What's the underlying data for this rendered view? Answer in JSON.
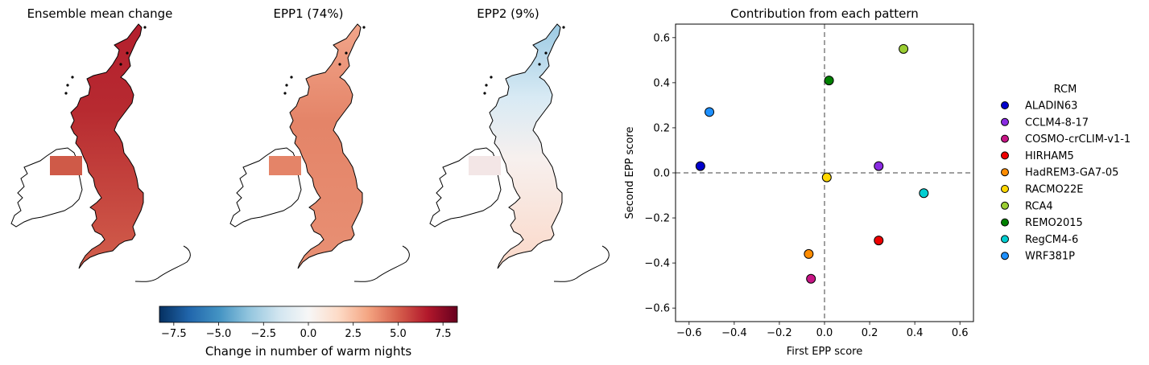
{
  "maps": [
    {
      "title": "Ensemble mean change",
      "style": "mean"
    },
    {
      "title": "EPP1 (74%)",
      "style": "epp1"
    },
    {
      "title": "EPP2 (9%)",
      "style": "epp2"
    }
  ],
  "colorbar": {
    "label": "Change in number of warm nights",
    "range": [
      -8.3,
      8.3
    ],
    "ticks": [
      "−7.5",
      "−5.0",
      "−2.5",
      "0.0",
      "2.5",
      "5.0",
      "7.5"
    ],
    "tick_values": [
      -7.5,
      -5.0,
      -2.5,
      0.0,
      2.5,
      5.0,
      7.5
    ],
    "colors": [
      "#053061",
      "#2166ac",
      "#4393c3",
      "#92c5de",
      "#d1e5f0",
      "#f7f7f7",
      "#fddbc7",
      "#f4a582",
      "#d6604d",
      "#b2182b",
      "#67001f"
    ]
  },
  "chart_data": {
    "type": "scatter",
    "title": "Contribution from each pattern",
    "xlabel": "First EPP score",
    "ylabel": "Second EPP score",
    "xlim": [
      -0.66,
      0.66
    ],
    "ylim": [
      -0.66,
      0.66
    ],
    "xticks": [
      -0.6,
      -0.4,
      -0.2,
      0.0,
      0.2,
      0.4,
      0.6
    ],
    "xtick_labels": [
      "−0.6",
      "−0.4",
      "−0.2",
      "0.0",
      "0.2",
      "0.4",
      "0.6"
    ],
    "yticks": [
      -0.6,
      -0.4,
      -0.2,
      0.0,
      0.2,
      0.4,
      0.6
    ],
    "ytick_labels": [
      "−0.6",
      "−0.4",
      "−0.2",
      "0.0",
      "0.2",
      "0.4",
      "0.6"
    ],
    "reference_lines": {
      "x": 0,
      "y": 0,
      "style": "dashed"
    },
    "grid": false,
    "legend": {
      "title": "RCM",
      "placement": "outside-right"
    },
    "series": [
      {
        "name": "ALADIN63",
        "color": "#0000cc",
        "x": -0.55,
        "y": 0.03
      },
      {
        "name": "CCLM4-8-17",
        "color": "#8a2be2",
        "x": 0.24,
        "y": 0.03
      },
      {
        "name": "COSMO-crCLIM-v1-1",
        "color": "#c71585",
        "x": -0.06,
        "y": -0.47
      },
      {
        "name": "HIRHAM5",
        "color": "#ee0000",
        "x": 0.24,
        "y": -0.3
      },
      {
        "name": "HadREM3-GA7-05",
        "color": "#ff8c00",
        "x": -0.07,
        "y": -0.36
      },
      {
        "name": "RACMO22E",
        "color": "#ffd700",
        "x": 0.01,
        "y": -0.02
      },
      {
        "name": "RCA4",
        "color": "#9acd32",
        "x": 0.35,
        "y": 0.55
      },
      {
        "name": "REMO2015",
        "color": "#008000",
        "x": 0.02,
        "y": 0.41
      },
      {
        "name": "RegCM4-6",
        "color": "#00ced1",
        "x": 0.44,
        "y": -0.09
      },
      {
        "name": "WRF381P",
        "color": "#1e90ff",
        "x": -0.51,
        "y": 0.27
      }
    ]
  }
}
